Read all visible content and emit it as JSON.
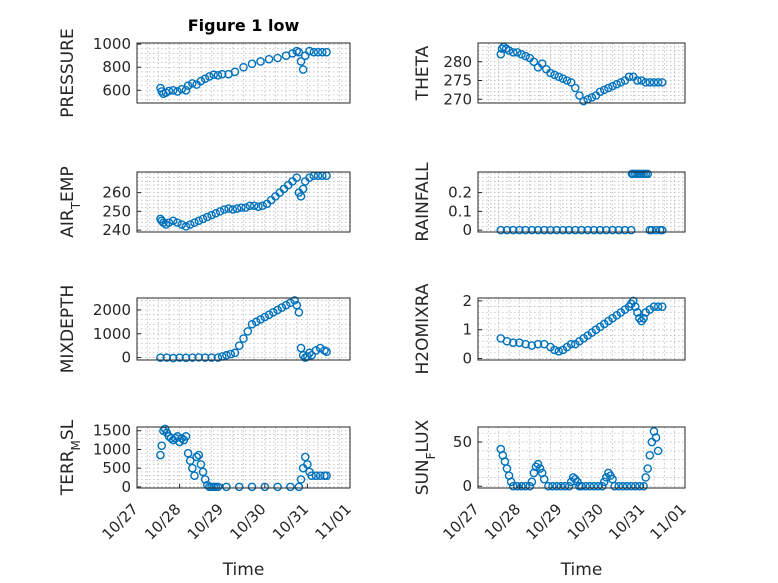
{
  "figure_title": "Figure 1 low",
  "colors": {
    "marker": "#0072bd",
    "axis": "#262626",
    "grid": "#b0b0b0"
  },
  "chart_data": [
    {
      "type": "scatter",
      "id": "pressure",
      "title": "Figure 1 low",
      "xlabel": "",
      "ylabel": "PRESSURE",
      "ylabel_sub": null,
      "xlim": [
        0,
        5
      ],
      "ylim": [
        490,
        1010
      ],
      "yticks": [
        600,
        800,
        1000
      ],
      "xticks": [],
      "grid": true,
      "series": [
        {
          "x": [
            0.55,
            0.58,
            0.62,
            0.68,
            0.75,
            0.85,
            0.95,
            1.05,
            1.15,
            1.2,
            1.3,
            1.4,
            1.5,
            1.6,
            1.7,
            1.8,
            1.9,
            2.0,
            2.15,
            2.3,
            2.5,
            2.7,
            2.9,
            3.1,
            3.3,
            3.5,
            3.65,
            3.75,
            3.8,
            3.85,
            3.9,
            3.95,
            4.05,
            4.15,
            4.25,
            4.35,
            4.45
          ],
          "y": [
            620,
            590,
            570,
            580,
            595,
            600,
            590,
            610,
            600,
            640,
            660,
            650,
            680,
            700,
            720,
            735,
            730,
            740,
            740,
            760,
            800,
            830,
            850,
            870,
            880,
            900,
            920,
            940,
            930,
            850,
            780,
            900,
            940,
            930,
            930,
            930,
            930
          ]
        }
      ]
    },
    {
      "type": "scatter",
      "id": "theta",
      "xlabel": "",
      "ylabel": "THETA",
      "ylabel_sub": null,
      "xlim": [
        0,
        5
      ],
      "ylim": [
        269,
        285
      ],
      "yticks": [
        270,
        275,
        280
      ],
      "xticks": [],
      "grid": true,
      "series": [
        {
          "x": [
            0.55,
            0.58,
            0.62,
            0.68,
            0.75,
            0.85,
            0.95,
            1.05,
            1.15,
            1.25,
            1.35,
            1.45,
            1.55,
            1.65,
            1.75,
            1.85,
            1.95,
            2.05,
            2.15,
            2.25,
            2.35,
            2.45,
            2.55,
            2.65,
            2.75,
            2.85,
            2.95,
            3.05,
            3.15,
            3.25,
            3.35,
            3.45,
            3.55,
            3.65,
            3.75,
            3.85,
            3.95,
            4.05,
            4.15,
            4.25,
            4.35,
            4.45
          ],
          "y": [
            282,
            283.5,
            284,
            283.5,
            283,
            282.5,
            282.5,
            282,
            281.5,
            281,
            280,
            278.5,
            279.5,
            278,
            277,
            276.5,
            276,
            275.5,
            275,
            274.5,
            273,
            271,
            269.5,
            270,
            270.5,
            271,
            272,
            272.5,
            273,
            273.5,
            274,
            274.5,
            275,
            276,
            276,
            275,
            275,
            274.5,
            274.5,
            274.5,
            274.5,
            274.5
          ]
        }
      ]
    },
    {
      "type": "scatter",
      "id": "air_temp",
      "xlabel": "",
      "ylabel": "AIR",
      "ylabel_sub": "T",
      "ylabel_suffix": "EMP",
      "xlim": [
        0,
        5
      ],
      "ylim": [
        239,
        271
      ],
      "yticks": [
        240,
        250,
        260
      ],
      "xticks": [],
      "grid": true,
      "series": [
        {
          "x": [
            0.55,
            0.58,
            0.62,
            0.68,
            0.75,
            0.85,
            0.95,
            1.05,
            1.15,
            1.25,
            1.35,
            1.45,
            1.55,
            1.65,
            1.75,
            1.85,
            1.95,
            2.05,
            2.15,
            2.25,
            2.35,
            2.45,
            2.55,
            2.65,
            2.75,
            2.85,
            2.95,
            3.05,
            3.15,
            3.25,
            3.35,
            3.45,
            3.55,
            3.65,
            3.75,
            3.8,
            3.85,
            3.9,
            3.95,
            4.05,
            4.15,
            4.25,
            4.35,
            4.45
          ],
          "y": [
            246,
            245,
            244,
            243,
            244,
            245,
            244,
            243,
            242,
            243,
            244,
            245,
            246,
            247,
            248,
            249,
            250,
            251,
            251.5,
            251,
            251.5,
            252,
            252,
            253,
            253,
            252.5,
            253,
            254,
            256,
            258,
            260,
            262,
            264,
            266,
            268,
            260,
            258,
            262,
            266,
            268,
            269,
            269,
            269,
            269
          ]
        }
      ]
    },
    {
      "type": "scatter",
      "id": "rainfall",
      "xlabel": "",
      "ylabel": "RAINFALL",
      "ylabel_sub": null,
      "xlim": [
        0,
        5
      ],
      "ylim": [
        -0.01,
        0.31
      ],
      "yticks": [
        0,
        0.1,
        0.2
      ],
      "ytick_labels": [
        "0",
        "0.1",
        "0.2"
      ],
      "xticks": [],
      "grid": true,
      "series": [
        {
          "x": [
            0.55,
            0.7,
            0.85,
            1.0,
            1.15,
            1.3,
            1.45,
            1.6,
            1.75,
            1.9,
            2.05,
            2.2,
            2.35,
            2.5,
            2.65,
            2.8,
            2.95,
            3.1,
            3.25,
            3.4,
            3.55,
            3.7,
            3.72,
            3.75,
            3.8,
            3.85,
            3.9,
            3.95,
            4.0,
            4.05,
            4.1,
            4.15,
            4.2,
            4.3,
            4.4,
            4.45
          ],
          "y": [
            0,
            0,
            0,
            0,
            0,
            0,
            0,
            0,
            0,
            0,
            0,
            0,
            0,
            0,
            0,
            0,
            0,
            0,
            0,
            0,
            0,
            0,
            0.3,
            0.3,
            0.3,
            0.3,
            0.3,
            0.3,
            0.3,
            0.3,
            0.3,
            0,
            0,
            0,
            0,
            0
          ]
        }
      ]
    },
    {
      "type": "scatter",
      "id": "mixdepth",
      "xlabel": "",
      "ylabel": "MIXDEPTH",
      "ylabel_sub": null,
      "xlim": [
        0,
        5
      ],
      "ylim": [
        -100,
        2500
      ],
      "yticks": [
        0,
        1000,
        2000
      ],
      "xticks": [],
      "grid": true,
      "series": [
        {
          "x": [
            0.55,
            0.7,
            0.85,
            1.0,
            1.15,
            1.3,
            1.45,
            1.6,
            1.75,
            1.9,
            2.0,
            2.1,
            2.2,
            2.3,
            2.4,
            2.5,
            2.6,
            2.7,
            2.8,
            2.9,
            3.0,
            3.1,
            3.2,
            3.3,
            3.4,
            3.5,
            3.6,
            3.7,
            3.75,
            3.8,
            3.85,
            3.9,
            3.95,
            4.0,
            4.05,
            4.1,
            4.2,
            4.3,
            4.4,
            4.45
          ],
          "y": [
            0,
            0,
            -20,
            0,
            -10,
            0,
            10,
            0,
            0,
            0,
            50,
            100,
            150,
            200,
            500,
            800,
            1100,
            1400,
            1500,
            1600,
            1700,
            1800,
            1900,
            2000,
            2100,
            2200,
            2300,
            2400,
            2200,
            1900,
            400,
            100,
            0,
            50,
            200,
            100,
            300,
            400,
            300,
            250
          ]
        }
      ]
    },
    {
      "type": "scatter",
      "id": "h2omixra",
      "xlabel": "",
      "ylabel": "H2OMIXRA",
      "ylabel_sub": null,
      "xlim": [
        0,
        5
      ],
      "ylim": [
        -0.05,
        2.1
      ],
      "yticks": [
        0,
        1,
        2
      ],
      "xticks": [],
      "grid": true,
      "series": [
        {
          "x": [
            0.55,
            0.7,
            0.85,
            1.0,
            1.15,
            1.3,
            1.45,
            1.6,
            1.75,
            1.85,
            1.95,
            2.05,
            2.15,
            2.25,
            2.35,
            2.45,
            2.55,
            2.65,
            2.75,
            2.85,
            2.95,
            3.05,
            3.15,
            3.25,
            3.35,
            3.45,
            3.55,
            3.65,
            3.7,
            3.75,
            3.8,
            3.85,
            3.9,
            3.95,
            4.0,
            4.05,
            4.15,
            4.25,
            4.35,
            4.45
          ],
          "y": [
            0.7,
            0.6,
            0.55,
            0.55,
            0.5,
            0.45,
            0.5,
            0.5,
            0.4,
            0.3,
            0.25,
            0.3,
            0.4,
            0.5,
            0.5,
            0.6,
            0.7,
            0.8,
            0.9,
            1.0,
            1.1,
            1.2,
            1.3,
            1.4,
            1.5,
            1.6,
            1.7,
            1.8,
            1.9,
            2.0,
            1.8,
            1.6,
            1.4,
            1.3,
            1.4,
            1.6,
            1.7,
            1.8,
            1.8,
            1.8
          ]
        }
      ]
    },
    {
      "type": "scatter",
      "id": "terr_msl",
      "xlabel": "Time",
      "ylabel": "TERR",
      "ylabel_sub": "M",
      "ylabel_suffix": "SL",
      "xlim": [
        0,
        5
      ],
      "ylim": [
        -30,
        1600
      ],
      "yticks": [
        0,
        500,
        1000,
        1500
      ],
      "xticks": [
        0,
        1,
        2,
        3,
        4,
        5
      ],
      "xtick_labels": [
        "10/27",
        "10/28",
        "10/29",
        "10/30",
        "10/31",
        "11/01"
      ],
      "grid": true,
      "series": [
        {
          "x": [
            0.55,
            0.58,
            0.62,
            0.66,
            0.7,
            0.75,
            0.8,
            0.85,
            0.9,
            0.95,
            1.0,
            1.05,
            1.1,
            1.15,
            1.2,
            1.25,
            1.3,
            1.35,
            1.4,
            1.45,
            1.5,
            1.55,
            1.6,
            1.65,
            1.7,
            1.75,
            1.8,
            1.85,
            1.9,
            2.1,
            2.4,
            2.7,
            3.0,
            3.3,
            3.6,
            3.8,
            3.85,
            3.9,
            3.95,
            4.0,
            4.05,
            4.1,
            4.2,
            4.3,
            4.4,
            4.45
          ],
          "y": [
            850,
            1100,
            1500,
            1550,
            1450,
            1350,
            1300,
            1250,
            1300,
            1350,
            1200,
            1300,
            1250,
            1350,
            900,
            700,
            500,
            300,
            800,
            850,
            600,
            400,
            200,
            50,
            0,
            0,
            0,
            0,
            0,
            0,
            0,
            0,
            0,
            0,
            0,
            0,
            200,
            500,
            800,
            600,
            400,
            300,
            300,
            300,
            300,
            300
          ]
        }
      ]
    },
    {
      "type": "scatter",
      "id": "sun_flux",
      "xlabel": "Time",
      "ylabel": "SUN",
      "ylabel_sub": "F",
      "ylabel_suffix": "LUX",
      "xlim": [
        0,
        5
      ],
      "ylim": [
        -2,
        67
      ],
      "yticks": [
        0,
        50
      ],
      "xticks": [
        0,
        1,
        2,
        3,
        4,
        5
      ],
      "xtick_labels": [
        "10/27",
        "10/28",
        "10/29",
        "10/30",
        "10/31",
        "11/01"
      ],
      "grid": true,
      "series": [
        {
          "x": [
            0.55,
            0.6,
            0.65,
            0.7,
            0.75,
            0.8,
            0.85,
            0.95,
            1.05,
            1.15,
            1.25,
            1.3,
            1.35,
            1.4,
            1.45,
            1.5,
            1.55,
            1.6,
            1.7,
            1.8,
            1.9,
            2.0,
            2.1,
            2.2,
            2.25,
            2.3,
            2.35,
            2.4,
            2.45,
            2.5,
            2.6,
            2.7,
            2.8,
            2.9,
            3.0,
            3.05,
            3.1,
            3.15,
            3.2,
            3.25,
            3.3,
            3.4,
            3.5,
            3.6,
            3.7,
            3.8,
            3.9,
            4.0,
            4.05,
            4.1,
            4.15,
            4.2,
            4.25,
            4.3,
            4.35
          ],
          "y": [
            42,
            35,
            28,
            20,
            12,
            5,
            0,
            0,
            0,
            0,
            0,
            5,
            15,
            22,
            25,
            20,
            15,
            8,
            0,
            0,
            0,
            0,
            0,
            0,
            5,
            10,
            8,
            5,
            0,
            0,
            0,
            0,
            0,
            0,
            0,
            5,
            10,
            15,
            12,
            8,
            0,
            0,
            0,
            0,
            0,
            0,
            0,
            0,
            10,
            20,
            35,
            50,
            62,
            55,
            40
          ]
        }
      ]
    }
  ]
}
